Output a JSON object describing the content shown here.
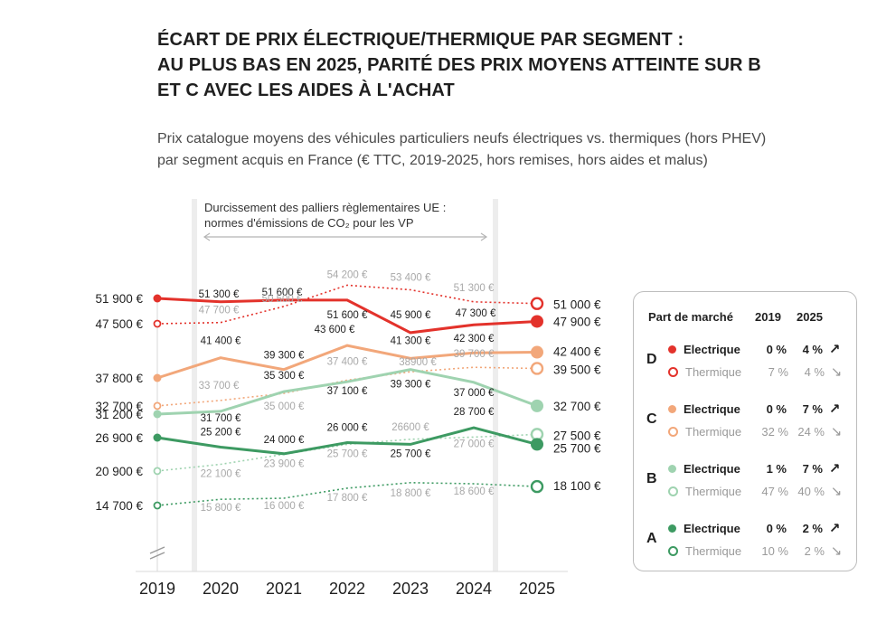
{
  "title_lines": [
    "ÉCART DE PRIX ÉLECTRIQUE/THERMIQUE PAR SEGMENT :",
    "AU PLUS BAS EN 2025, PARITÉ DES PRIX MOYENS ATTEINTE SUR B",
    "ET C AVEC LES AIDES À L'ACHAT"
  ],
  "subtitle_lines": [
    "Prix catalogue moyens des véhicules particuliers neufs électriques vs. thermiques (hors PHEV)",
    "par segment acquis en France (€ TTC, 2019-2025, hors remises, hors aides et malus)"
  ],
  "annotation_lines": [
    "Durcissement des palliers règlementaires UE :",
    "normes d'émissions de CO₂ pour les VP"
  ],
  "chart_data": {
    "type": "line",
    "x": [
      "2019",
      "2020",
      "2021",
      "2022",
      "2023",
      "2024",
      "2025"
    ],
    "series": [
      {
        "name": "D Electrique",
        "values": [
          51900,
          51300,
          51600,
          51600,
          45900,
          47300,
          47900
        ],
        "labels": [
          "51 900 €",
          "51 300 €",
          "51 600 €",
          "51 600 €",
          "45 900 €",
          "47 300 €",
          "47 900 €"
        ],
        "color": "#e3322b",
        "dashed": false
      },
      {
        "name": "D Thermique",
        "values": [
          47500,
          47700,
          50500,
          54200,
          53400,
          51300,
          51000
        ],
        "labels": [
          "47 500 €",
          "47 700 €",
          "50 500 €",
          "54 200 €",
          "53 400 €",
          "51 300 €",
          "51 000 €"
        ],
        "color": "#e3322b",
        "dashed": true
      },
      {
        "name": "C Electrique",
        "values": [
          37800,
          41400,
          39300,
          43600,
          41300,
          42300,
          42400
        ],
        "labels": [
          "37 800 €",
          "41 400 €",
          "39 300 €",
          "43 600 €",
          "41 300 €",
          "42 300 €",
          "42 400 €"
        ],
        "color": "#f2a77a",
        "dashed": false
      },
      {
        "name": "C Thermique",
        "values": [
          32700,
          33700,
          35000,
          37400,
          38900,
          39700,
          39500
        ],
        "labels": [
          "32 700 €",
          "33 700 €",
          "35 000 €",
          "37 400 €",
          "38900 €",
          "39 700 €",
          "39 500 €"
        ],
        "color": "#f2a77a",
        "dashed": true
      },
      {
        "name": "B Electrique",
        "values": [
          31200,
          31700,
          35300,
          37100,
          39300,
          37000,
          32700
        ],
        "labels": [
          "31 200 €",
          "31 700 €",
          "35 300 €",
          "37 100 €",
          "39 300 €",
          "37 000 €",
          "32 700 €"
        ],
        "color": "#9fd3b0",
        "dashed": false
      },
      {
        "name": "B Thermique",
        "values": [
          20900,
          22100,
          23900,
          25700,
          26600,
          27000,
          27500
        ],
        "labels": [
          "20 900 €",
          "22 100 €",
          "23 900 €",
          "25 700 €",
          "26600 €",
          "27 000 €",
          "27 500 €"
        ],
        "color": "#9fd3b0",
        "dashed": true
      },
      {
        "name": "A Electrique",
        "values": [
          26900,
          25200,
          24000,
          26000,
          25700,
          28700,
          25700
        ],
        "labels": [
          "26 900 €",
          "25 200 €",
          "24 000 €",
          "26 000 €",
          "25 700 €",
          "28 700 €",
          "25 700 €"
        ],
        "color": "#3d9a62",
        "dashed": false
      },
      {
        "name": "A Thermique",
        "values": [
          14700,
          15800,
          16000,
          17800,
          18800,
          18600,
          18100
        ],
        "labels": [
          "14 700 €",
          "15 800 €",
          "16 000 €",
          "17 800 €",
          "18 800 €",
          "18 600 €",
          "18 100 €"
        ],
        "color": "#3d9a62",
        "dashed": true
      }
    ],
    "shaded_range": [
      "2020",
      "2025"
    ],
    "axis_break": true,
    "grid": false
  },
  "legend": {
    "header": "Part de marché",
    "year1": "2019",
    "year2": "2025",
    "segments": [
      {
        "letter": "D",
        "color": "#e3322b",
        "elec": {
          "name": "Electrique",
          "v2019": "0 %",
          "v2025": "4 %",
          "arrow": "↗"
        },
        "therm": {
          "name": "Thermique",
          "v2019": "7 %",
          "v2025": "4 %",
          "arrow": "↘"
        }
      },
      {
        "letter": "C",
        "color": "#f2a77a",
        "elec": {
          "name": "Electrique",
          "v2019": "0 %",
          "v2025": "7 %",
          "arrow": "↗"
        },
        "therm": {
          "name": "Thermique",
          "v2019": "32 %",
          "v2025": "24 %",
          "arrow": "↘"
        }
      },
      {
        "letter": "B",
        "color": "#9fd3b0",
        "elec": {
          "name": "Electrique",
          "v2019": "1 %",
          "v2025": "7 %",
          "arrow": "↗"
        },
        "therm": {
          "name": "Thermique",
          "v2019": "47 %",
          "v2025": "40 %",
          "arrow": "↘"
        }
      },
      {
        "letter": "A",
        "color": "#3d9a62",
        "elec": {
          "name": "Electrique",
          "v2019": "0 %",
          "v2025": "2 %",
          "arrow": "↗"
        },
        "therm": {
          "name": "Thermique",
          "v2019": "10 %",
          "v2025": "2 %",
          "arrow": "↘"
        }
      }
    ]
  }
}
